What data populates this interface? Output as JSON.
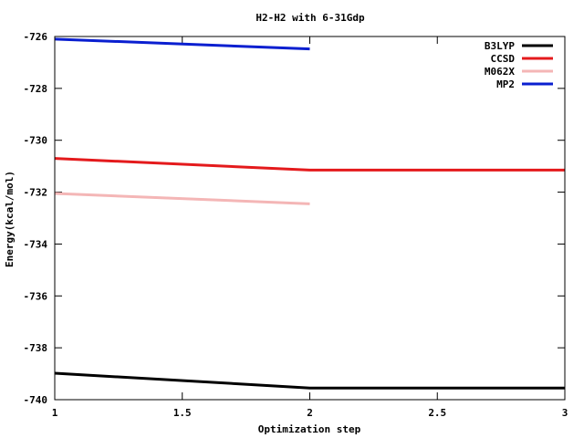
{
  "chart_data": {
    "type": "line",
    "title": "H2-H2 with 6-31Gdp",
    "xlabel": "Optimization step",
    "ylabel": "Energy(kcal/mol)",
    "xlim": [
      1,
      3
    ],
    "ylim": [
      -740,
      -726
    ],
    "xticks": [
      1,
      1.5,
      2,
      2.5,
      3
    ],
    "xtick_labels": [
      "1",
      "1.5",
      "2",
      "2.5",
      "3"
    ],
    "yticks": [
      -740,
      -738,
      -736,
      -734,
      -732,
      -730,
      -728,
      -726
    ],
    "ytick_labels": [
      "-740",
      "-738",
      "-736",
      "-734",
      "-732",
      "-730",
      "-728",
      "-726"
    ],
    "grid": false,
    "legend_position": "top-right",
    "series": [
      {
        "name": "B3LYP",
        "color": "#000000",
        "x": [
          1,
          2,
          3
        ],
        "y": [
          -738.98,
          -739.55,
          -739.55
        ]
      },
      {
        "name": "CCSD",
        "color": "#e41a1c",
        "x": [
          1,
          2,
          3
        ],
        "y": [
          -730.7,
          -731.15,
          -731.15
        ]
      },
      {
        "name": "M062X",
        "color": "#f4b6b6",
        "x": [
          1,
          2
        ],
        "y": [
          -732.05,
          -732.45
        ]
      },
      {
        "name": "MP2",
        "color": "#0a1fd0",
        "x": [
          1,
          2
        ],
        "y": [
          -726.1,
          -726.48
        ]
      }
    ]
  }
}
